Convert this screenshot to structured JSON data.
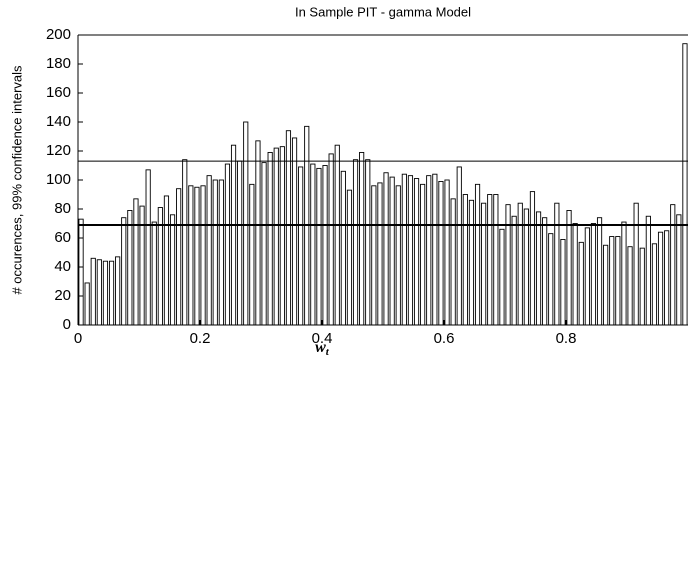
{
  "chart_data": {
    "type": "histogram",
    "title": "In Sample PIT - gamma Model",
    "xlabel": "w",
    "xlabel_subscript": "t",
    "ylabel": "# occurences, 99% confidence intervals",
    "bins": [
      0,
      0.01,
      0.02,
      0.03,
      0.04,
      0.05,
      0.06,
      0.07,
      0.08,
      0.09,
      0.1,
      0.11,
      0.12,
      0.13,
      0.14,
      0.15,
      0.16,
      0.17,
      0.18,
      0.19,
      0.2,
      0.21,
      0.22,
      0.23,
      0.24,
      0.25,
      0.26,
      0.27,
      0.28,
      0.29,
      0.3,
      0.31,
      0.32,
      0.33,
      0.34,
      0.35,
      0.36,
      0.37,
      0.38,
      0.39,
      0.4,
      0.41,
      0.42,
      0.43,
      0.44,
      0.45,
      0.46,
      0.47,
      0.48,
      0.49,
      0.5,
      0.51,
      0.52,
      0.53,
      0.54,
      0.55,
      0.56,
      0.57,
      0.58,
      0.59,
      0.6,
      0.61,
      0.62,
      0.63,
      0.64,
      0.65,
      0.66,
      0.67,
      0.68,
      0.69,
      0.7,
      0.71,
      0.72,
      0.73,
      0.74,
      0.75,
      0.76,
      0.77,
      0.78,
      0.79,
      0.8,
      0.81,
      0.82,
      0.83,
      0.84,
      0.85,
      0.86,
      0.87,
      0.88,
      0.89,
      0.9,
      0.91,
      0.92,
      0.93,
      0.94,
      0.95,
      0.96,
      0.97,
      0.98,
      0.99,
      1
    ],
    "values": [
      73,
      29,
      46,
      45,
      44,
      44,
      47,
      74,
      79,
      87,
      82,
      107,
      71,
      81,
      89,
      76,
      94,
      114,
      96,
      95,
      96,
      103,
      100,
      100,
      111,
      124,
      113,
      140,
      97,
      127,
      112,
      119,
      122,
      123,
      134,
      129,
      109,
      137,
      111,
      108,
      110,
      118,
      124,
      106,
      93,
      114,
      119,
      114,
      96,
      98,
      105,
      102,
      96,
      104,
      103,
      101,
      97,
      103,
      104,
      99,
      100,
      87,
      109,
      90,
      86,
      97,
      84,
      90,
      90,
      66,
      83,
      75,
      84,
      80,
      92,
      78,
      74,
      63,
      84,
      59,
      79,
      70,
      57,
      67,
      70,
      74,
      55,
      61,
      61,
      71,
      54,
      84,
      53,
      75,
      56,
      64,
      65,
      83,
      76,
      194
    ],
    "color": "#ffffff",
    "reference_lines": [
      {
        "value": 113,
        "width": 1
      },
      {
        "value": 69,
        "width": 2
      }
    ],
    "xlim": [
      0,
      1
    ],
    "xticks": [
      0,
      0.2,
      0.4,
      0.6,
      0.8
    ],
    "ylim": [
      0,
      200
    ],
    "yticks": [
      0,
      20,
      40,
      60,
      80,
      100,
      120,
      140,
      160,
      180,
      200
    ]
  }
}
